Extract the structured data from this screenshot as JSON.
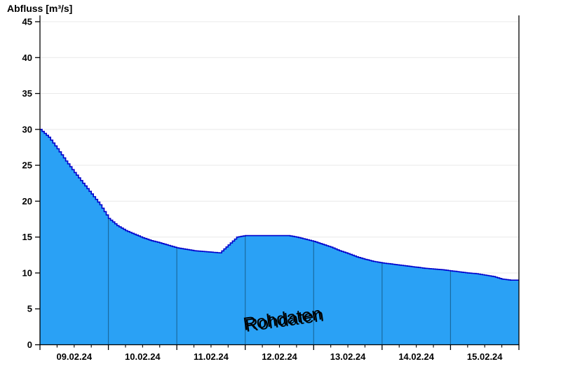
{
  "chart_data": {
    "type": "area",
    "title": "Abfluss [m³/s]",
    "watermark": "Rohdaten",
    "ylabel": "Abfluss [m³/s]",
    "xlabel": "",
    "ylim": [
      0,
      45
    ],
    "ytick_step": 5,
    "yticks": [
      0,
      5,
      10,
      15,
      20,
      25,
      30,
      35,
      40,
      45
    ],
    "x_day_labels": [
      "09.02.24",
      "10.02.24",
      "11.02.24",
      "12.02.24",
      "13.02.24",
      "14.02.24",
      "15.02.24"
    ],
    "x_minor_ticks_per_day": 4,
    "grid": "horizontal light gray, day separators visible inside filled area only",
    "legend": "none",
    "series": [
      {
        "name": "Rohdaten",
        "x_unit": "days since 09.02.24 00:00",
        "y_unit": "m³/s",
        "render": "raw-data steps, area filled to zero",
        "points": [
          [
            0.0,
            30.0
          ],
          [
            0.125,
            28.9
          ],
          [
            0.25,
            27.3
          ],
          [
            0.375,
            25.6
          ],
          [
            0.5,
            24.0
          ],
          [
            0.625,
            22.5
          ],
          [
            0.75,
            21.0
          ],
          [
            0.875,
            19.5
          ],
          [
            1.0,
            17.6
          ],
          [
            1.125,
            16.6
          ],
          [
            1.25,
            15.9
          ],
          [
            1.375,
            15.4
          ],
          [
            1.5,
            14.9
          ],
          [
            1.625,
            14.5
          ],
          [
            1.75,
            14.2
          ],
          [
            1.875,
            13.85
          ],
          [
            2.0,
            13.5
          ],
          [
            2.125,
            13.3
          ],
          [
            2.25,
            13.1
          ],
          [
            2.375,
            13.0
          ],
          [
            2.5,
            12.9
          ],
          [
            2.625,
            12.8
          ],
          [
            2.75,
            13.9
          ],
          [
            2.875,
            15.0
          ],
          [
            3.0,
            15.2
          ],
          [
            3.125,
            15.2
          ],
          [
            3.25,
            15.2
          ],
          [
            3.375,
            15.2
          ],
          [
            3.5,
            15.2
          ],
          [
            3.625,
            15.2
          ],
          [
            3.75,
            15.0
          ],
          [
            3.875,
            14.7
          ],
          [
            4.0,
            14.4
          ],
          [
            4.125,
            14.0
          ],
          [
            4.25,
            13.6
          ],
          [
            4.375,
            13.1
          ],
          [
            4.5,
            12.7
          ],
          [
            4.625,
            12.25
          ],
          [
            4.75,
            11.9
          ],
          [
            4.875,
            11.6
          ],
          [
            5.0,
            11.4
          ],
          [
            5.125,
            11.25
          ],
          [
            5.25,
            11.1
          ],
          [
            5.375,
            10.95
          ],
          [
            5.5,
            10.8
          ],
          [
            5.625,
            10.65
          ],
          [
            5.75,
            10.55
          ],
          [
            5.875,
            10.45
          ],
          [
            6.0,
            10.3
          ],
          [
            6.125,
            10.15
          ],
          [
            6.25,
            10.0
          ],
          [
            6.375,
            9.9
          ],
          [
            6.5,
            9.7
          ],
          [
            6.625,
            9.5
          ],
          [
            6.75,
            9.15
          ],
          [
            6.875,
            9.0
          ],
          [
            7.0,
            9.0
          ]
        ]
      }
    ],
    "colors": {
      "area_fill": "#2AA1F5",
      "curve_line": "#0000CC",
      "day_separator": "#1A6AA0",
      "gridline": "#E9E9E9",
      "axis": "#000000",
      "tick_label": "#000000",
      "watermark_text": "#FFFFFF",
      "watermark_shadow": "#5F5F5F"
    }
  }
}
